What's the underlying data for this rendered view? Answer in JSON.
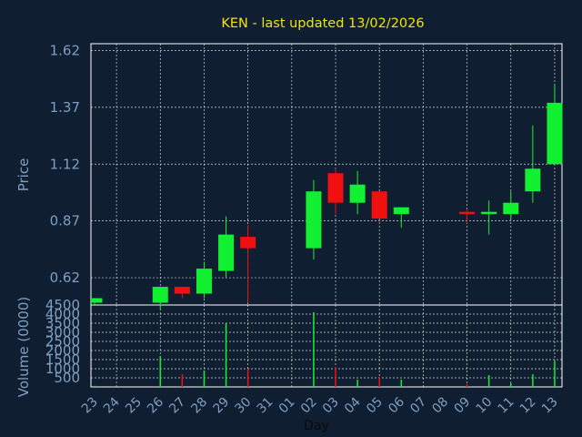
{
  "chart_data": [
    {
      "type": "candlestick",
      "title": "KEN - last updated 13/02/2026",
      "ylabel": "Price",
      "ylim": [
        0.5,
        1.65
      ],
      "yticks": [
        "0.62",
        "0.87",
        "1.12",
        "1.37",
        "1.62"
      ],
      "grid": true,
      "categories": [
        "23",
        "24",
        "25",
        "26",
        "27",
        "28",
        "29",
        "30",
        "31",
        "01",
        "02",
        "03",
        "04",
        "05",
        "06",
        "07",
        "08",
        "09",
        "10",
        "11",
        "12",
        "13"
      ],
      "candles": [
        {
          "x": "23",
          "open": 0.51,
          "high": 0.53,
          "low": 0.5,
          "close": 0.53
        },
        {
          "x": "26",
          "open": 0.51,
          "high": 0.58,
          "low": 0.48,
          "close": 0.58
        },
        {
          "x": "27",
          "open": 0.58,
          "high": 0.58,
          "low": 0.53,
          "close": 0.55
        },
        {
          "x": "28",
          "open": 0.55,
          "high": 0.69,
          "low": 0.53,
          "close": 0.66
        },
        {
          "x": "29",
          "open": 0.65,
          "high": 0.89,
          "low": 0.62,
          "close": 0.81
        },
        {
          "x": "30",
          "open": 0.8,
          "high": 0.85,
          "low": 0.51,
          "close": 0.75
        },
        {
          "x": "02",
          "open": 0.75,
          "high": 1.05,
          "low": 0.7,
          "close": 1.0
        },
        {
          "x": "03",
          "open": 1.08,
          "high": 1.1,
          "low": 0.9,
          "close": 0.95
        },
        {
          "x": "04",
          "open": 0.95,
          "high": 1.09,
          "low": 0.9,
          "close": 1.03
        },
        {
          "x": "05",
          "open": 1.0,
          "high": 1.0,
          "low": 0.88,
          "close": 0.88
        },
        {
          "x": "06",
          "open": 0.9,
          "high": 0.93,
          "low": 0.84,
          "close": 0.93
        },
        {
          "x": "09",
          "open": 0.91,
          "high": 0.92,
          "low": 0.86,
          "close": 0.9
        },
        {
          "x": "10",
          "open": 0.9,
          "high": 0.96,
          "low": 0.81,
          "close": 0.91
        },
        {
          "x": "11",
          "open": 0.9,
          "high": 1.0,
          "low": 0.88,
          "close": 0.95
        },
        {
          "x": "12",
          "open": 1.0,
          "high": 1.29,
          "low": 0.95,
          "close": 1.1
        },
        {
          "x": "13",
          "open": 1.12,
          "high": 1.47,
          "low": 1.12,
          "close": 1.39
        }
      ]
    },
    {
      "type": "bar",
      "ylabel": "Volume (0000)",
      "xlabel": "Day",
      "ylim": [
        0,
        4500
      ],
      "yticks": [
        "500",
        "1000",
        "1500",
        "2000",
        "2500",
        "3000",
        "3500",
        "4000",
        "4500"
      ],
      "categories": [
        "23",
        "24",
        "25",
        "26",
        "27",
        "28",
        "29",
        "30",
        "31",
        "01",
        "02",
        "03",
        "04",
        "05",
        "06",
        "07",
        "08",
        "09",
        "10",
        "11",
        "12",
        "13"
      ],
      "bars": [
        {
          "x": "23",
          "value": 60,
          "direction": "up"
        },
        {
          "x": "26",
          "value": 1700,
          "direction": "up"
        },
        {
          "x": "27",
          "value": 700,
          "direction": "down"
        },
        {
          "x": "28",
          "value": 900,
          "direction": "up"
        },
        {
          "x": "29",
          "value": 3500,
          "direction": "up"
        },
        {
          "x": "30",
          "value": 1000,
          "direction": "down"
        },
        {
          "x": "02",
          "value": 4100,
          "direction": "up"
        },
        {
          "x": "03",
          "value": 1100,
          "direction": "down"
        },
        {
          "x": "04",
          "value": 400,
          "direction": "up"
        },
        {
          "x": "05",
          "value": 550,
          "direction": "down"
        },
        {
          "x": "06",
          "value": 400,
          "direction": "up"
        },
        {
          "x": "09",
          "value": 150,
          "direction": "down"
        },
        {
          "x": "10",
          "value": 650,
          "direction": "up"
        },
        {
          "x": "11",
          "value": 200,
          "direction": "up"
        },
        {
          "x": "12",
          "value": 700,
          "direction": "up"
        },
        {
          "x": "13",
          "value": 1400,
          "direction": "up"
        }
      ]
    }
  ],
  "colors": {
    "background": "#0f1e31",
    "up": "#11f031",
    "down": "#f01010",
    "axis_text": "#7f9fc0",
    "title": "#f2e400",
    "grid": "#ffffff"
  }
}
